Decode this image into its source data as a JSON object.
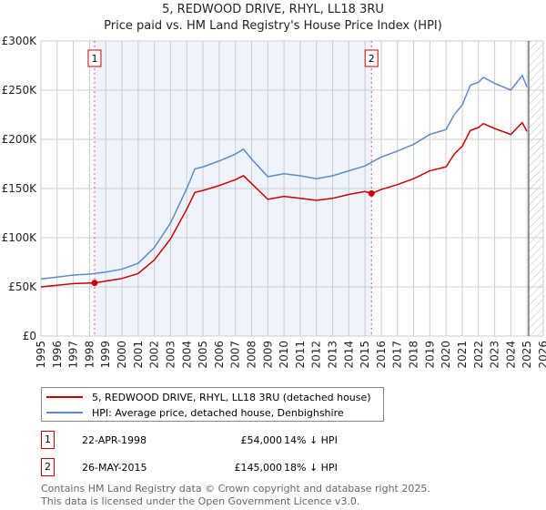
{
  "title": "5, REDWOOD DRIVE, RHYL, LL18 3RU",
  "subtitle": "Price paid vs. HM Land Registry's House Price Index (HPI)",
  "chart_data": {
    "type": "line",
    "title": "5, REDWOOD DRIVE, RHYL, LL18 3RU",
    "subtitle": "Price paid vs. HM Land Registry's House Price Index (HPI)",
    "xlim": [
      1995,
      2026
    ],
    "ylim": [
      0,
      300000
    ],
    "yticks": [
      {
        "v": 0,
        "label": "£0"
      },
      {
        "v": 50000,
        "label": "£50K"
      },
      {
        "v": 100000,
        "label": "£100K"
      },
      {
        "v": 150000,
        "label": "£150K"
      },
      {
        "v": 200000,
        "label": "£200K"
      },
      {
        "v": 250000,
        "label": "£250K"
      },
      {
        "v": 300000,
        "label": "£300K"
      }
    ],
    "xticks": [
      "1995",
      "1996",
      "1997",
      "1998",
      "1999",
      "2000",
      "2001",
      "2002",
      "2003",
      "2004",
      "2005",
      "2006",
      "2007",
      "2008",
      "2009",
      "2010",
      "2011",
      "2012",
      "2013",
      "2014",
      "2015",
      "2016",
      "2017",
      "2018",
      "2019",
      "2020",
      "2021",
      "2022",
      "2023",
      "2024",
      "2025",
      "2026"
    ],
    "grid": true,
    "shaded_range": [
      1998.31,
      2015.4
    ],
    "forecast_from": 2025.1,
    "series": [
      {
        "name": "5, REDWOOD DRIVE, RHYL, LL18 3RU (detached house)",
        "color": "#cc0000",
        "x": [
          1995,
          1996,
          1997,
          1998.31,
          1999,
          2000,
          2001,
          2002,
          2003,
          2004,
          2004.5,
          2005,
          2006,
          2007,
          2007.5,
          2008,
          2009,
          2010,
          2011,
          2012,
          2013,
          2014,
          2015,
          2015.4,
          2016,
          2017,
          2018,
          2019,
          2020,
          2020.5,
          2021,
          2021.5,
          2022,
          2022.3,
          2023,
          2024,
          2024.7,
          2025
        ],
        "y": [
          50000,
          51600,
          53300,
          54000,
          55900,
          58500,
          63600,
          77400,
          98900,
          129000,
          146000,
          148000,
          153000,
          159000,
          163000,
          155000,
          139000,
          142000,
          140000,
          138000,
          140000,
          144000,
          147000,
          145000,
          149000,
          154000,
          160000,
          168000,
          172000,
          185000,
          193000,
          209000,
          212000,
          216000,
          211000,
          205000,
          217000,
          208000
        ]
      },
      {
        "name": "HPI: Average price, detached house, Denbighshire",
        "color": "#5b8bd0",
        "x": [
          1995,
          1996,
          1997,
          1998,
          1999,
          2000,
          2001,
          2002,
          2003,
          2004,
          2004.5,
          2005,
          2006,
          2007,
          2007.5,
          2008,
          2009,
          2010,
          2011,
          2012,
          2013,
          2014,
          2015,
          2016,
          2017,
          2018,
          2019,
          2020,
          2020.5,
          2021,
          2021.5,
          2022,
          2022.3,
          2023,
          2024,
          2024.7,
          2025
        ],
        "y": [
          58000,
          60000,
          62000,
          63000,
          65000,
          68000,
          74000,
          90000,
          115000,
          150000,
          170000,
          172000,
          178000,
          185000,
          190000,
          180000,
          162000,
          165000,
          163000,
          160000,
          163000,
          168000,
          173000,
          182000,
          188000,
          195000,
          205000,
          210000,
          225000,
          235000,
          255000,
          258000,
          263000,
          257000,
          250000,
          265000,
          253000
        ]
      }
    ],
    "sales": [
      {
        "n": "1",
        "x": 1998.31,
        "y": 54000
      },
      {
        "n": "2",
        "x": 2015.4,
        "y": 145000
      }
    ],
    "legend_position": "bottom"
  },
  "legend": [
    {
      "label": "5, REDWOOD DRIVE, RHYL, LL18 3RU (detached house)",
      "color": "#cc0000"
    },
    {
      "label": "HPI: Average price, detached house, Denbighshire",
      "color": "#5b8bd0"
    }
  ],
  "transactions": [
    {
      "n": "1",
      "date": "22-APR-1998",
      "price": "£54,000",
      "hpi": "14% ↓ HPI"
    },
    {
      "n": "2",
      "date": "26-MAY-2015",
      "price": "£145,000",
      "hpi": "18% ↓ HPI"
    }
  ],
  "footer": [
    "Contains HM Land Registry data © Crown copyright and database right 2025.",
    "This data is licensed under the Open Government Licence v3.0."
  ]
}
